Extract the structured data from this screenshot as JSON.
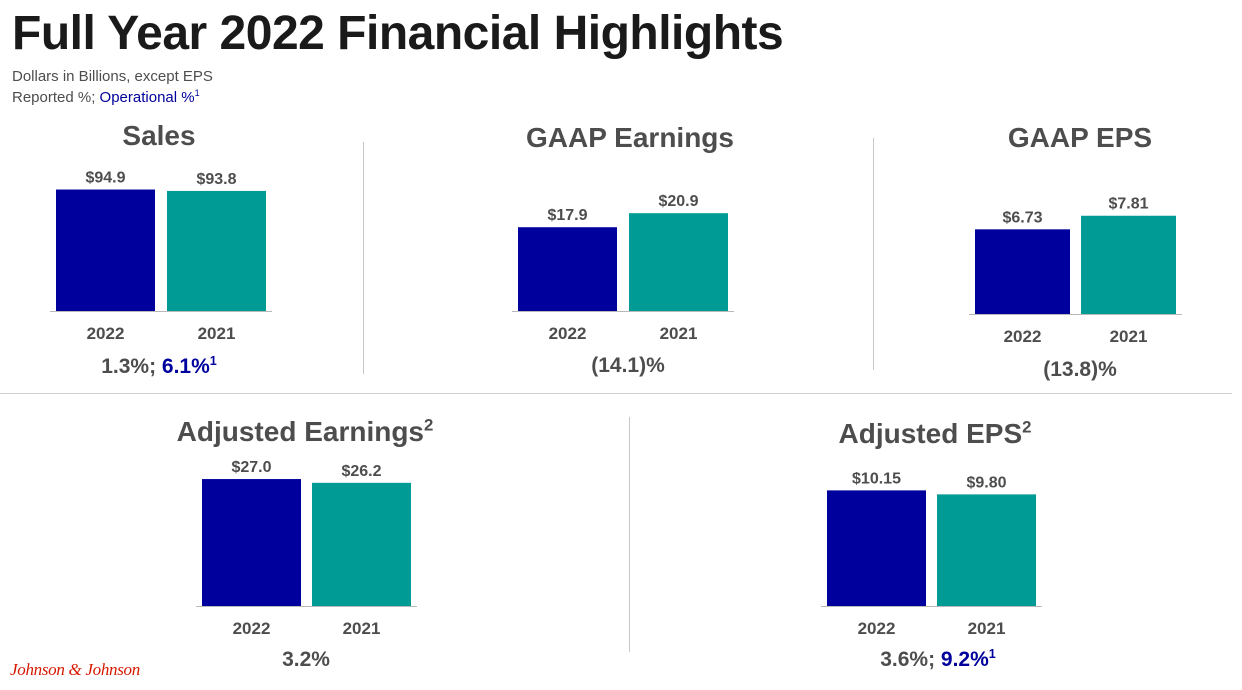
{
  "header": {
    "title": "Full Year 2022 Financial Highlights",
    "subtitle": "Dollars in Billions, except EPS",
    "reported_label": "Reported %; ",
    "operational_label": "Operational %",
    "operational_sup": "1"
  },
  "colors": {
    "bar_2022": "#00009c",
    "bar_2021": "#009b95",
    "emphasis": "#00009c",
    "logo": "#d51900"
  },
  "chart_data": [
    {
      "id": "sales",
      "type": "bar",
      "title": "Sales",
      "title_sup": "",
      "categories": [
        "2022",
        "2021"
      ],
      "values": [
        94.9,
        93.8
      ],
      "labels": [
        "$94.9",
        "$93.8"
      ],
      "ylim": [
        0,
        100
      ],
      "growth_reported": "1.3%",
      "growth_separator": "; ",
      "growth_operational": "6.1%",
      "growth_sup": "1"
    },
    {
      "id": "gaap-earnings",
      "type": "bar",
      "title": "GAAP Earnings",
      "title_sup": "",
      "categories": [
        "2022",
        "2021"
      ],
      "values": [
        17.9,
        20.9
      ],
      "labels": [
        "$17.9",
        "$20.9"
      ],
      "ylim": [
        0,
        25
      ],
      "growth_reported": "(14.1)%",
      "growth_separator": "",
      "growth_operational": "",
      "growth_sup": ""
    },
    {
      "id": "gaap-eps",
      "type": "bar",
      "title": "GAAP EPS",
      "title_sup": "",
      "categories": [
        "2022",
        "2021"
      ],
      "values": [
        6.73,
        7.81
      ],
      "labels": [
        "$6.73",
        "$7.81"
      ],
      "ylim": [
        0,
        9.3
      ],
      "growth_reported": "(13.8)%",
      "growth_separator": "",
      "growth_operational": "",
      "growth_sup": ""
    },
    {
      "id": "adjusted-earnings",
      "type": "bar",
      "title": "Adjusted Earnings",
      "title_sup": "2",
      "categories": [
        "2022",
        "2021"
      ],
      "values": [
        27.0,
        26.2
      ],
      "labels": [
        "$27.0",
        "$26.2"
      ],
      "ylim": [
        0,
        28.5
      ],
      "growth_reported": "3.2%",
      "growth_separator": "",
      "growth_operational": "",
      "growth_sup": ""
    },
    {
      "id": "adjusted-eps",
      "type": "bar",
      "title": "Adjusted EPS",
      "title_sup": "2",
      "categories": [
        "2022",
        "2021"
      ],
      "values": [
        10.15,
        9.8
      ],
      "labels": [
        "$10.15",
        "$9.80"
      ],
      "ylim": [
        0,
        11.5
      ],
      "growth_reported": "3.6%",
      "growth_separator": "; ",
      "growth_operational": "9.2%",
      "growth_sup": "1"
    }
  ],
  "footer": {
    "logo_text": "Johnson & Johnson"
  }
}
